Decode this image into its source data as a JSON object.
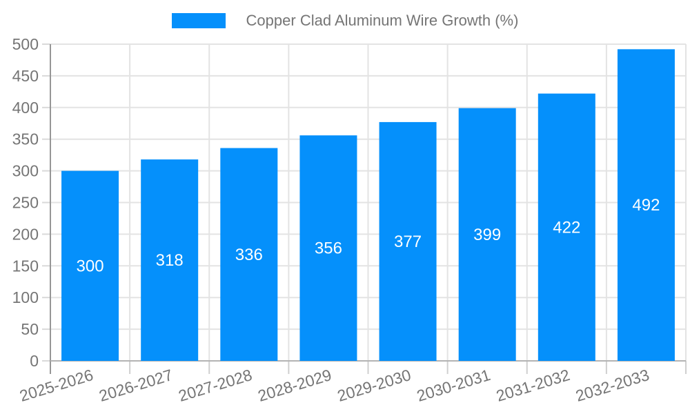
{
  "chart_data": {
    "type": "bar",
    "title": "Copper Clad Aluminum Wire Growth (%)",
    "categories": [
      "2025-2026",
      "2026-2027",
      "2027-2028",
      "2028-2029",
      "2029-2030",
      "2030-2031",
      "2031-2032",
      "2032-2033"
    ],
    "values": [
      300,
      318,
      336,
      356,
      377,
      399,
      422,
      492
    ],
    "xlabel": "",
    "ylabel": "",
    "ylim": [
      0,
      500
    ],
    "ytick_step": 50,
    "yticks": [
      0,
      50,
      100,
      150,
      200,
      250,
      300,
      350,
      400,
      450,
      500
    ],
    "grid": true,
    "legend_position": "top",
    "legend_label": "Copper Clad Aluminum Wire Growth (%)",
    "bar_color": "#0590FB",
    "value_label_color": "#FFFFFF",
    "axis_label_color": "#757575",
    "grid_color": "#E3E3E3",
    "x_axis_line_color": "#B3B3B3",
    "y_axis_line_color": "#969696",
    "tick_color": "#CFCFCF"
  }
}
